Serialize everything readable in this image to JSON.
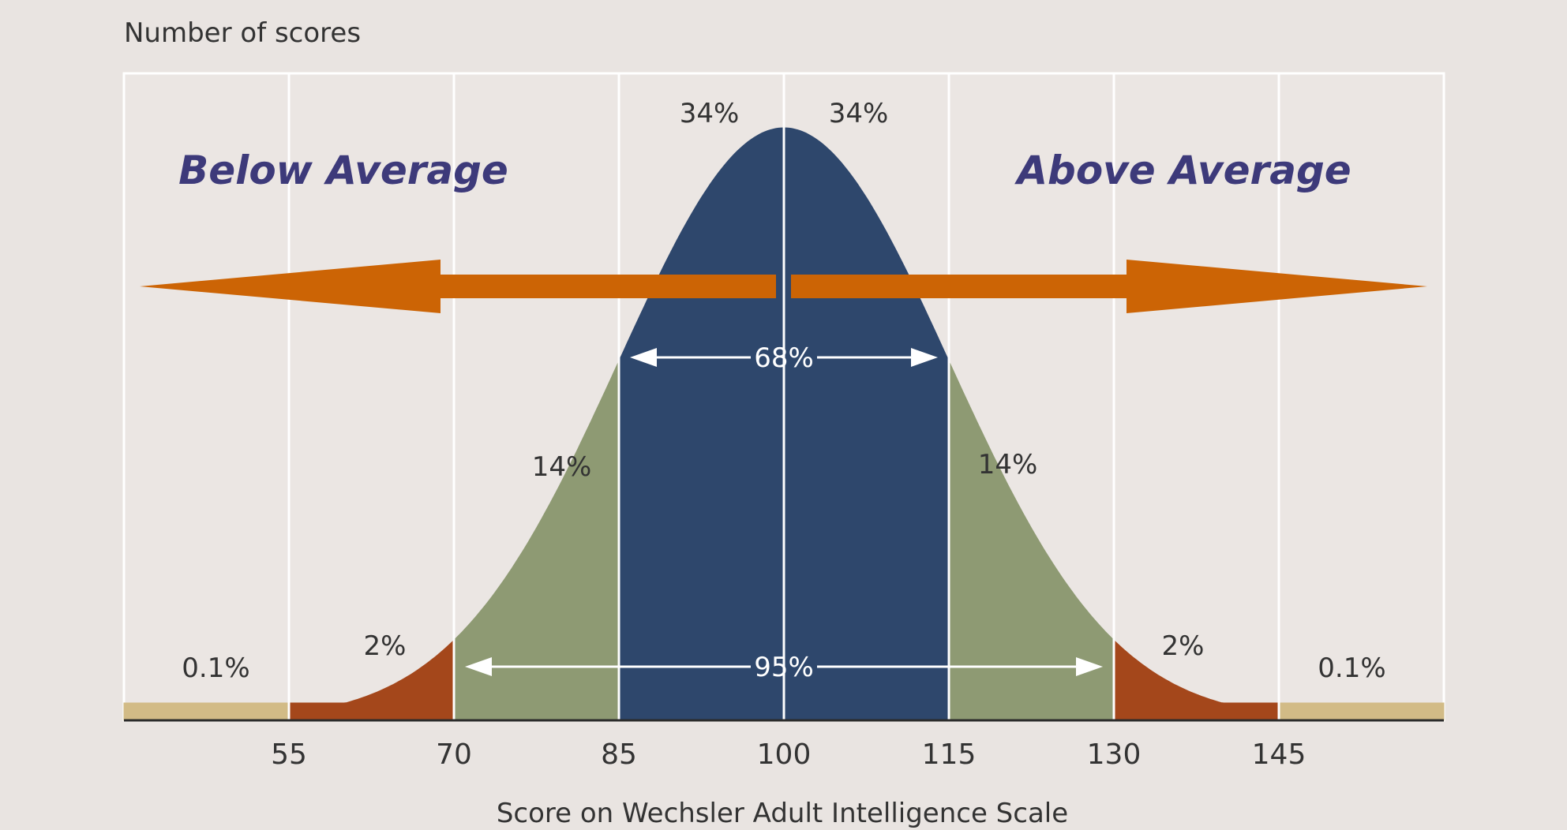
{
  "chart_data": {
    "type": "area",
    "ylabel": "Number of scores",
    "xlabel": "Score on Wechsler Adult Intelligence Scale",
    "xlim": [
      40,
      160
    ],
    "x_ticks": [
      55,
      70,
      85,
      100,
      115,
      130,
      145
    ],
    "distribution": {
      "mean": 100,
      "sd": 15
    },
    "grid": true,
    "regions": [
      {
        "from": 40,
        "to": 55,
        "label": "0.1%",
        "color": "#d2bb86"
      },
      {
        "from": 55,
        "to": 70,
        "label": "2%",
        "color": "#a4471b"
      },
      {
        "from": 70,
        "to": 85,
        "label": "14%",
        "color": "#8e9a73"
      },
      {
        "from": 85,
        "to": 100,
        "label": "34%",
        "color": "#2e476c"
      },
      {
        "from": 100,
        "to": 115,
        "label": "34%",
        "color": "#2e476c"
      },
      {
        "from": 115,
        "to": 130,
        "label": "14%",
        "color": "#8e9a73"
      },
      {
        "from": 130,
        "to": 145,
        "label": "2%",
        "color": "#a4471b"
      },
      {
        "from": 145,
        "to": 160,
        "label": "0.1%",
        "color": "#d2bb86"
      }
    ],
    "ranges": [
      {
        "from": 85,
        "to": 115,
        "label": "68%"
      },
      {
        "from": 70,
        "to": 130,
        "label": "95%"
      }
    ],
    "annotations": {
      "left": "Below Average",
      "right": "Above Average",
      "arrow_color": "#cc6405"
    }
  }
}
